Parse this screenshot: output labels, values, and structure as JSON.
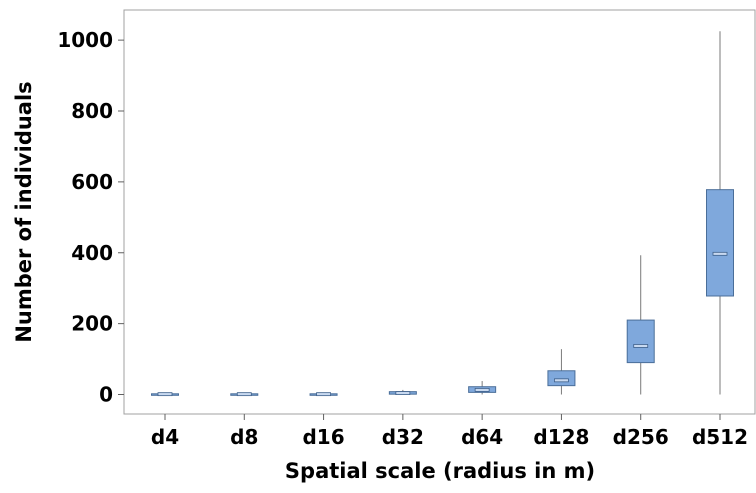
{
  "chart_data": {
    "type": "box",
    "title": "",
    "xlabel": "Spatial scale (radius in m)",
    "ylabel": "Number of individuals",
    "ylim": [
      -55,
      1085
    ],
    "yticks": [
      0,
      200,
      400,
      600,
      800,
      1000
    ],
    "grid": false,
    "box_color": "#7fa8dc",
    "box_edge_color": "#4a6e99",
    "categories": [
      "d4",
      "d8",
      "d16",
      "d32",
      "d64",
      "d128",
      "d256",
      "d512"
    ],
    "boxes": [
      {
        "category": "d4",
        "min": 0,
        "q1": 0,
        "median": 1,
        "q3": 2,
        "max": 3
      },
      {
        "category": "d8",
        "min": 0,
        "q1": 0,
        "median": 1,
        "q3": 2,
        "max": 3
      },
      {
        "category": "d16",
        "min": 0,
        "q1": 0,
        "median": 1,
        "q3": 2,
        "max": 4
      },
      {
        "category": "d32",
        "min": 0,
        "q1": 1,
        "median": 4,
        "q3": 8,
        "max": 13
      },
      {
        "category": "d64",
        "min": 0,
        "q1": 6,
        "median": 13,
        "q3": 22,
        "max": 38
      },
      {
        "category": "d128",
        "min": 0,
        "q1": 25,
        "median": 40,
        "q3": 67,
        "max": 128
      },
      {
        "category": "d256",
        "min": 0,
        "q1": 90,
        "median": 137,
        "q3": 210,
        "max": 393
      },
      {
        "category": "d512",
        "min": 0,
        "q1": 278,
        "median": 397,
        "q3": 578,
        "max": 1025
      }
    ]
  }
}
